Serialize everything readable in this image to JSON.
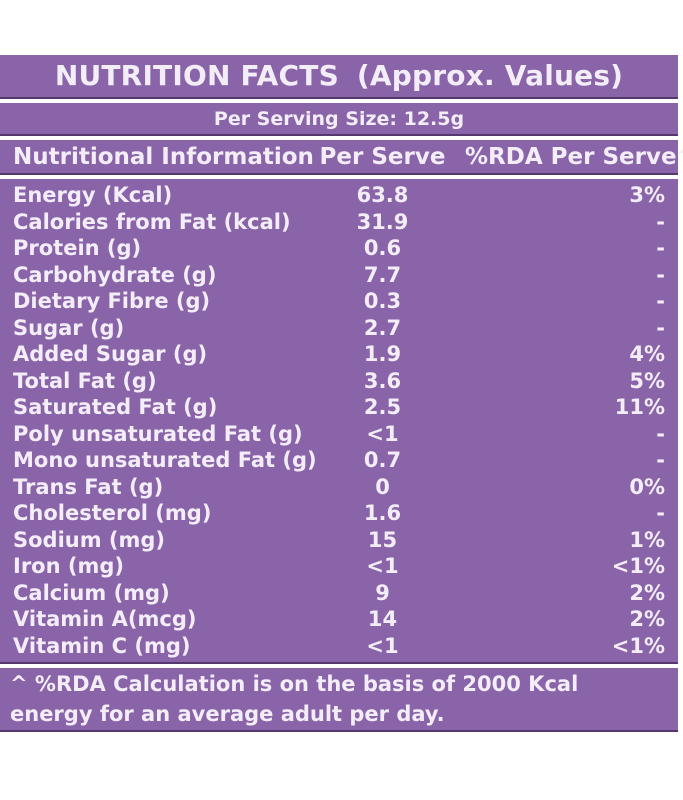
{
  "header": {
    "title_main": "NUTRITION FACTS",
    "title_sub": "(Approx. Values)",
    "serving_line": "Per Serving Size: 12.5g"
  },
  "table": {
    "columns": {
      "label": "Nutritional Information",
      "per_serve": "Per Serve",
      "rda": "%RDA Per Serve^"
    },
    "rows": [
      {
        "label": "Energy (Kcal)",
        "value": "63.8",
        "rda": "3%"
      },
      {
        "label": "Calories from Fat (kcal)",
        "value": "31.9",
        "rda": "-"
      },
      {
        "label": "Protein (g)",
        "value": "0.6",
        "rda": "-"
      },
      {
        "label": "Carbohydrate (g)",
        "value": "7.7",
        "rda": "-"
      },
      {
        "label": "Dietary Fibre (g)",
        "value": "0.3",
        "rda": "-"
      },
      {
        "label": "Sugar (g)",
        "value": "2.7",
        "rda": "-"
      },
      {
        "label": "Added Sugar (g)",
        "value": "1.9",
        "rda": "4%"
      },
      {
        "label": "Total Fat (g)",
        "value": "3.6",
        "rda": "5%"
      },
      {
        "label": "Saturated Fat (g)",
        "value": "2.5",
        "rda": "11%"
      },
      {
        "label": "Poly unsaturated Fat (g)",
        "value": "<1",
        "rda": "-"
      },
      {
        "label": "Mono unsaturated Fat (g)",
        "value": "0.7",
        "rda": "-"
      },
      {
        "label": "Trans Fat (g)",
        "value": "0",
        "rda": "0%"
      },
      {
        "label": "Cholesterol (mg)",
        "value": "1.6",
        "rda": "-"
      },
      {
        "label": "Sodium (mg)",
        "value": "15",
        "rda": "1%"
      },
      {
        "label": "Iron (mg)",
        "value": "<1",
        "rda": "<1%"
      },
      {
        "label": "Calcium (mg)",
        "value": "9",
        "rda": "2%"
      },
      {
        "label": "Vitamin A(mcg)",
        "value": "14",
        "rda": "2%"
      },
      {
        "label": "Vitamin C (mg)",
        "value": "<1",
        "rda": "<1%"
      }
    ]
  },
  "footnote": {
    "text": "^ %RDA Calculation is on the basis of 2000 Kcal energy for an average adult per day."
  },
  "colors": {
    "band_purple": "#8a64a8",
    "band_edge": "#54386e",
    "text": "#f3edf8",
    "page_background": "#ffffff"
  }
}
